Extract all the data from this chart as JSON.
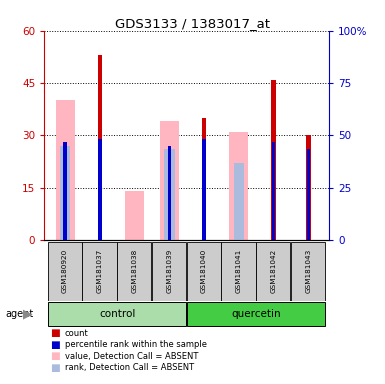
{
  "title": "GDS3133 / 1383017_at",
  "samples": [
    "GSM180920",
    "GSM181037",
    "GSM181038",
    "GSM181039",
    "GSM181040",
    "GSM181041",
    "GSM181042",
    "GSM181043"
  ],
  "red_bars": [
    0,
    53,
    0,
    0,
    35,
    0,
    46,
    30
  ],
  "blue_bars": [
    28,
    29,
    0,
    27,
    29,
    0,
    28,
    26
  ],
  "pink_bars": [
    40,
    0,
    14,
    34,
    0,
    31,
    0,
    0
  ],
  "lightblue_bars": [
    27,
    0,
    0,
    26,
    0,
    22,
    0,
    0
  ],
  "ylim_left": [
    0,
    60
  ],
  "ylim_right": [
    0,
    100
  ],
  "yticks_left": [
    0,
    15,
    30,
    45,
    60
  ],
  "yticks_right": [
    0,
    25,
    50,
    75,
    100
  ],
  "yticklabels_right": [
    "0",
    "25",
    "50",
    "75",
    "100%"
  ],
  "left_tick_color": "#cc0000",
  "right_tick_color": "#0000cc",
  "red_color": "#cc0000",
  "blue_color": "#0000cc",
  "pink_color": "#ffb6c1",
  "lightblue_color": "#aabbdd",
  "control_color": "#aaddaa",
  "quercetin_color": "#44cc44",
  "sample_box_color": "#cccccc",
  "legend_items": [
    {
      "color": "#cc0000",
      "label": "count"
    },
    {
      "color": "#0000cc",
      "label": "percentile rank within the sample"
    },
    {
      "color": "#ffb6c1",
      "label": "value, Detection Call = ABSENT"
    },
    {
      "color": "#aabbdd",
      "label": "rank, Detection Call = ABSENT"
    }
  ]
}
